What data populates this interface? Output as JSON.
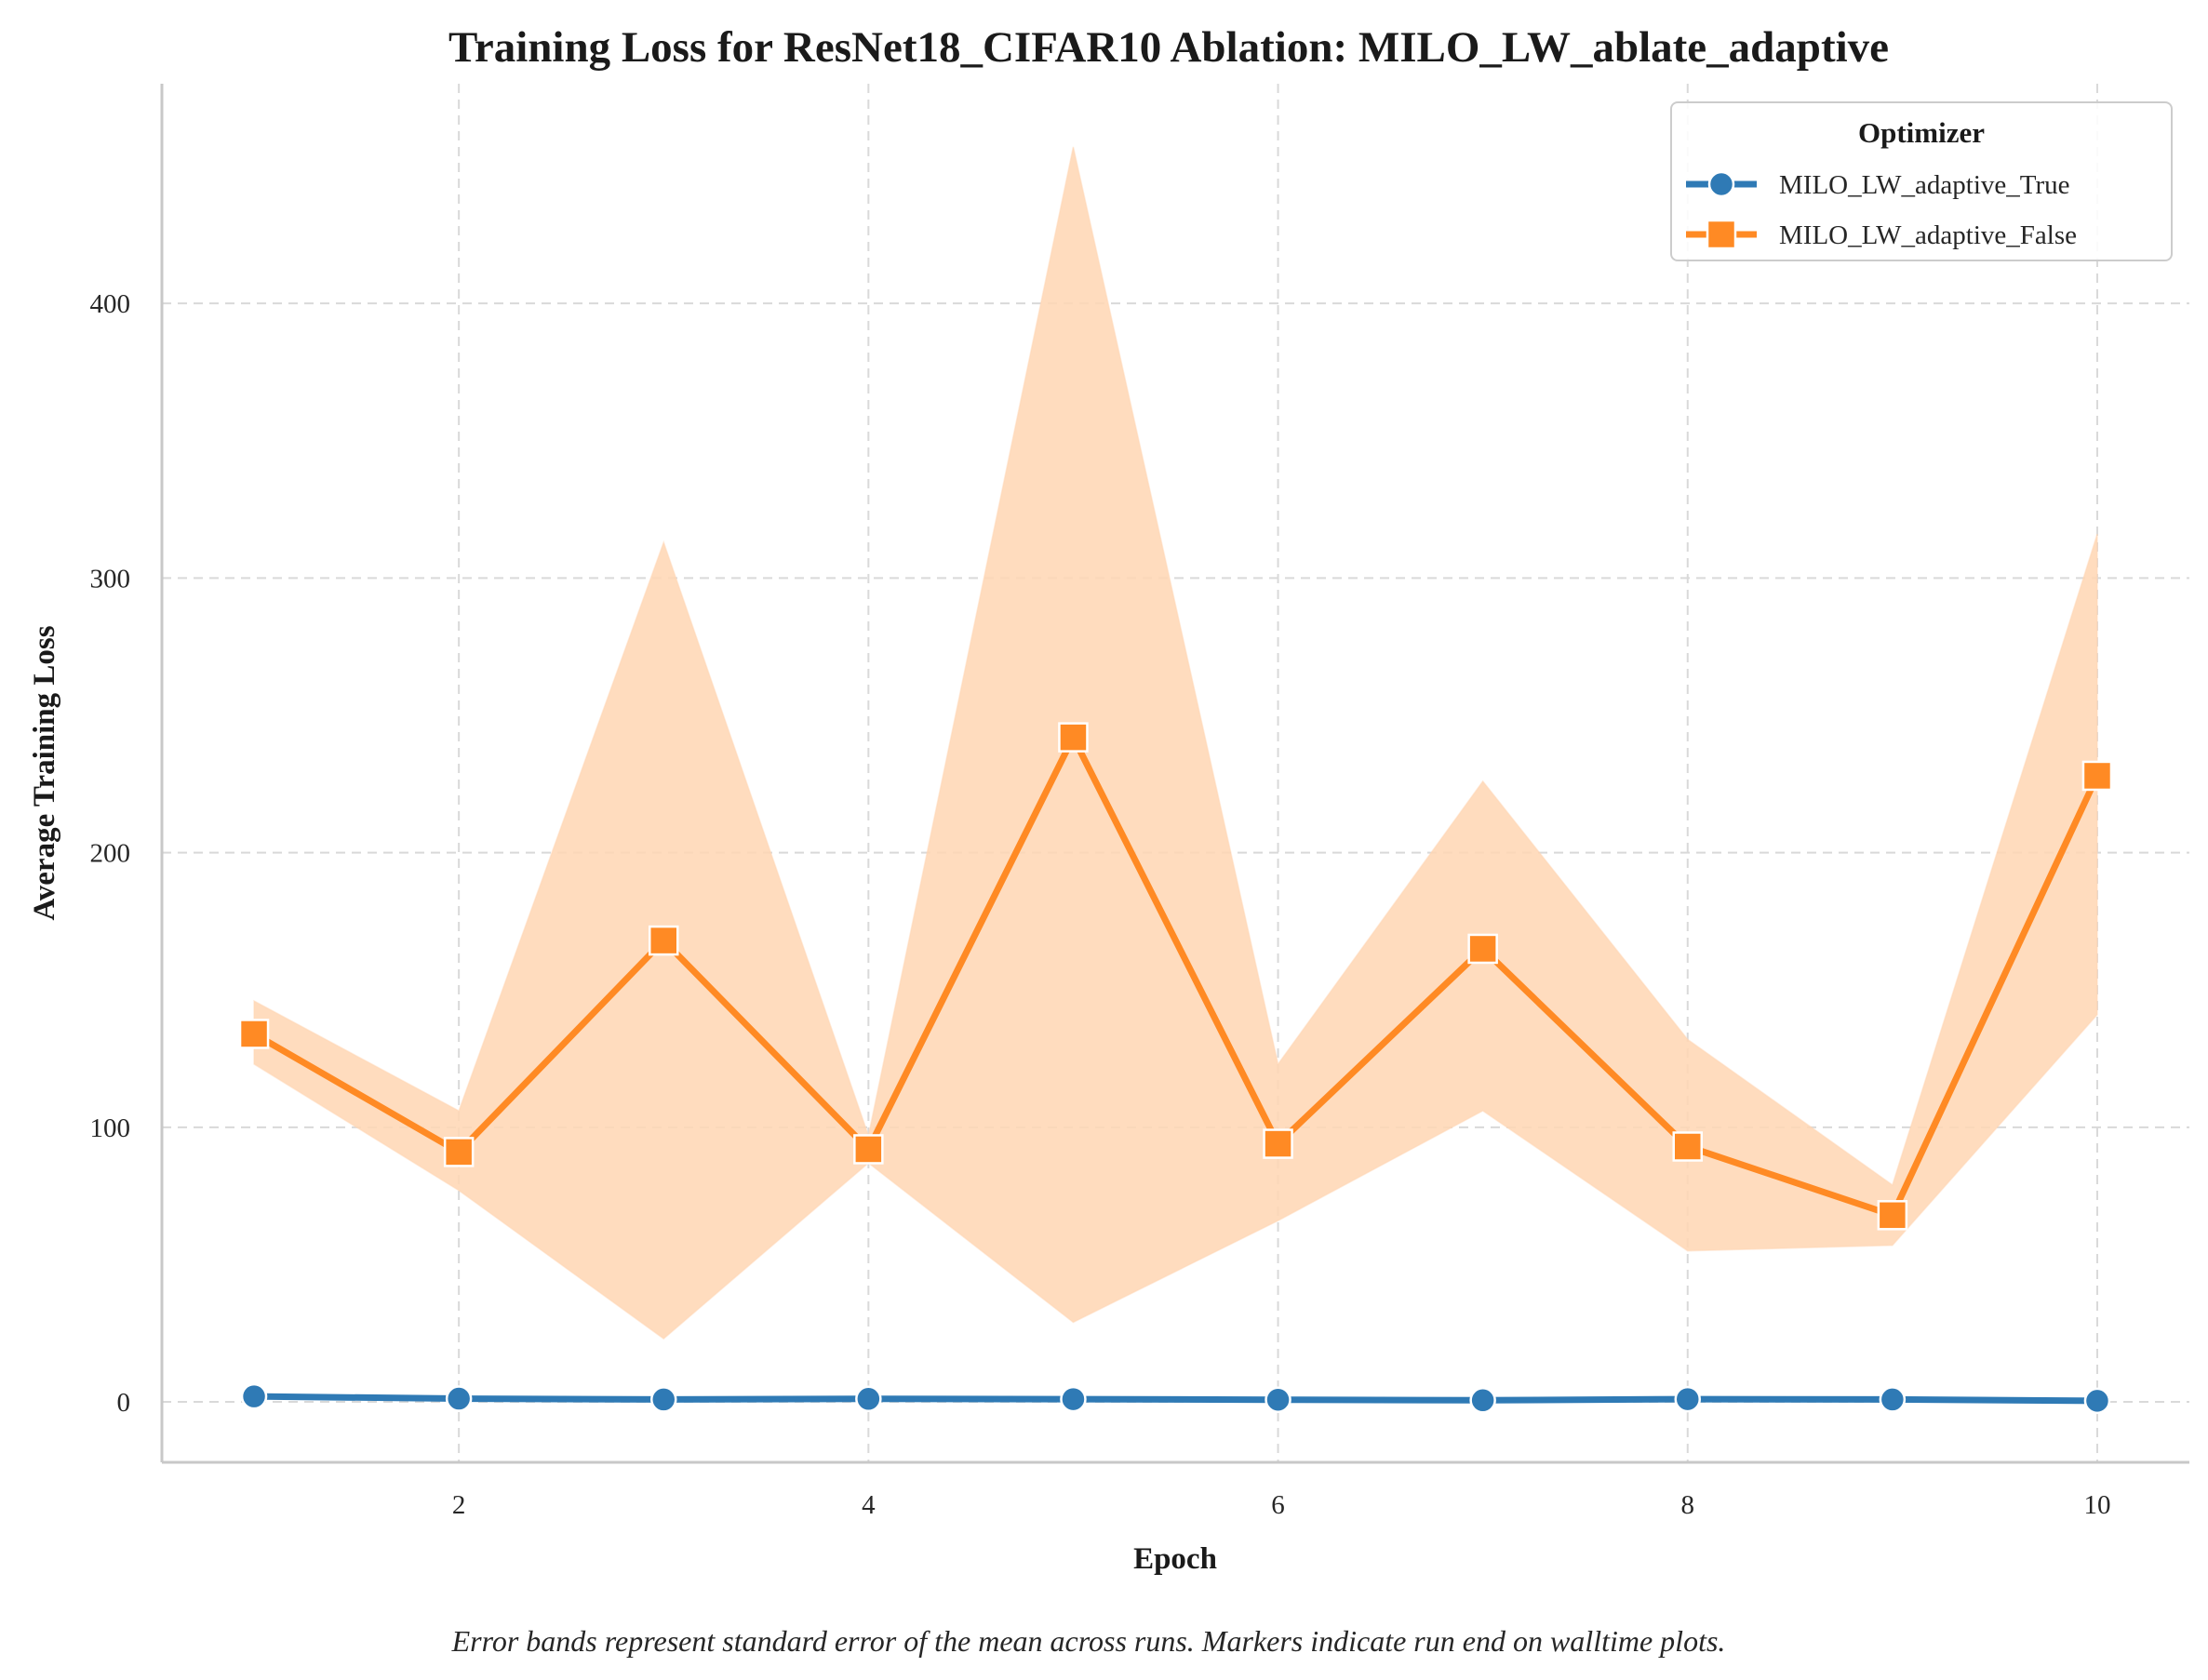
{
  "chart_data": {
    "type": "line",
    "title": "Training Loss for ResNet18_CIFAR10 Ablation: MILO_LW_ablate_adaptive",
    "xlabel": "Epoch",
    "ylabel": "Average Training Loss",
    "caption": "Error bands represent standard error of the mean across runs. Markers indicate run end on walltime plots.",
    "xlim": [
      0.55,
      10.45
    ],
    "ylim": [
      -22,
      480
    ],
    "xticks": [
      2,
      4,
      6,
      8,
      10
    ],
    "yticks": [
      0,
      100,
      200,
      300,
      400
    ],
    "grid": true,
    "legend": {
      "title": "Optimizer",
      "placement": "top-right"
    },
    "series": [
      {
        "name": "MILO_LW_adaptive_True",
        "color": "#2f7ab5",
        "marker": "circle",
        "x": [
          1,
          2,
          3,
          4,
          5,
          6,
          7,
          8,
          9,
          10
        ],
        "values": [
          2.0,
          1.2,
          0.9,
          1.1,
          1.0,
          0.8,
          0.6,
          1.0,
          0.9,
          0.4
        ],
        "lower": [
          1.8,
          1.0,
          0.7,
          0.9,
          0.8,
          0.6,
          0.4,
          0.8,
          0.7,
          0.2
        ],
        "upper": [
          2.2,
          1.4,
          1.1,
          1.3,
          1.2,
          1.0,
          0.8,
          1.2,
          1.1,
          0.6
        ]
      },
      {
        "name": "MILO_LW_adaptive_False",
        "color": "#ff8a24",
        "band_color": "#ffd6b3",
        "marker": "square",
        "x": [
          1,
          2,
          3,
          4,
          5,
          6,
          7,
          8,
          9,
          10
        ],
        "values": [
          134,
          91,
          168,
          92,
          242,
          94,
          165,
          93,
          68,
          228
        ],
        "lower": [
          123,
          77,
          23,
          87,
          29,
          66,
          106,
          55,
          57,
          141
        ],
        "upper": [
          146,
          106,
          313,
          97,
          457,
          123,
          226,
          132,
          79,
          316
        ]
      }
    ]
  }
}
